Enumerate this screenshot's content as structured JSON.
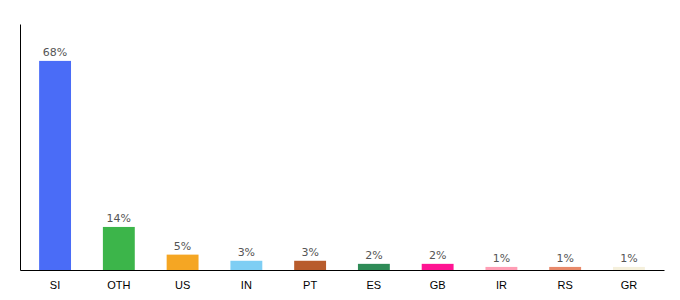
{
  "chart_data": {
    "type": "bar",
    "categories": [
      "SI",
      "OTH",
      "US",
      "IN",
      "PT",
      "ES",
      "GB",
      "IR",
      "RS",
      "GR"
    ],
    "values": [
      68,
      14,
      5,
      3,
      3,
      2,
      2,
      1,
      1,
      1
    ],
    "value_labels": [
      "68%",
      "14%",
      "5%",
      "3%",
      "3%",
      "2%",
      "2%",
      "1%",
      "1%",
      "1%"
    ],
    "colors": [
      "#4a6cf7",
      "#3cb54a",
      "#f5a623",
      "#7ecef4",
      "#b85c2c",
      "#2e8b57",
      "#ff1493",
      "#ff9eb5",
      "#e8896a",
      "#f5f0dc"
    ],
    "ylim": [
      0,
      80
    ],
    "data_labels": true,
    "tick_labels": "x",
    "grid": false
  }
}
